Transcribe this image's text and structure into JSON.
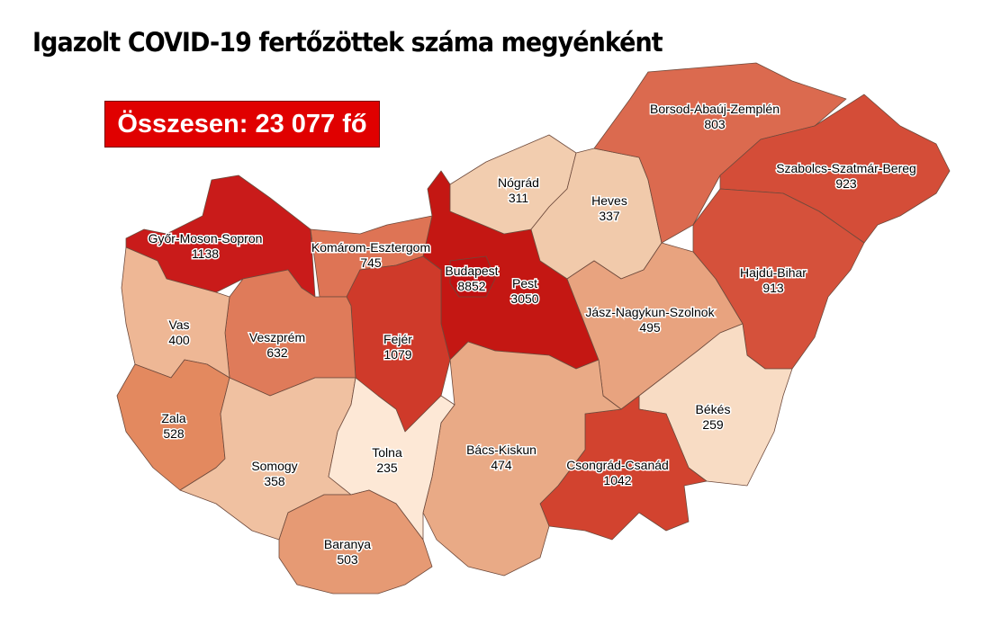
{
  "title": "Igazolt COVID-19 fertőzöttek száma megyénként",
  "total_label": "Összesen: 23 077 fő",
  "counties": [
    {
      "id": "gyms",
      "name": "Győr-Moson-Sopron",
      "value": "1138",
      "color": "#c91b1a"
    },
    {
      "id": "ke",
      "name": "Komárom-Esztergom",
      "value": "745",
      "color": "#de7455"
    },
    {
      "id": "pest",
      "name": "Pest",
      "value": "3050",
      "color": "#c41713"
    },
    {
      "id": "bp",
      "name": "Budapest",
      "value": "8852",
      "color": "#c01010"
    },
    {
      "id": "nograd",
      "name": "Nógrád",
      "value": "311",
      "color": "#f2cdaf"
    },
    {
      "id": "heves",
      "name": "Heves",
      "value": "337",
      "color": "#f1caab"
    },
    {
      "id": "borsod",
      "name": "Borsod-Abaúj-Zemplén",
      "value": "803",
      "color": "#db6a4f"
    },
    {
      "id": "szszb",
      "name": "Szabolcs-Szatmár-Bereg",
      "value": "923",
      "color": "#d44d38"
    },
    {
      "id": "hb",
      "name": "Hajdú-Bihar",
      "value": "913",
      "color": "#d5513b"
    },
    {
      "id": "jnsz",
      "name": "Jász-Nagykun-Szolnok",
      "value": "495",
      "color": "#e8a37f"
    },
    {
      "id": "bekes",
      "name": "Békés",
      "value": "259",
      "color": "#f8dcc4"
    },
    {
      "id": "csongrad",
      "name": "Csongrád-Csanád",
      "value": "1042",
      "color": "#d2432f"
    },
    {
      "id": "bacs",
      "name": "Bács-Kiskun",
      "value": "474",
      "color": "#e9aa86"
    },
    {
      "id": "fejer",
      "name": "Fejér",
      "value": "1079",
      "color": "#cf3a2a"
    },
    {
      "id": "veszprem",
      "name": "Veszprém",
      "value": "632",
      "color": "#df7b5a"
    },
    {
      "id": "vas",
      "name": "Vas",
      "value": "400",
      "color": "#eeb795"
    },
    {
      "id": "zala",
      "name": "Zala",
      "value": "528",
      "color": "#e3895f"
    },
    {
      "id": "somogy",
      "name": "Somogy",
      "value": "358",
      "color": "#f0c1a1"
    },
    {
      "id": "tolna",
      "name": "Tolna",
      "value": "235",
      "color": "#fde8d6"
    },
    {
      "id": "baranya",
      "name": "Baranya",
      "value": "503",
      "color": "#e69a74"
    }
  ]
}
